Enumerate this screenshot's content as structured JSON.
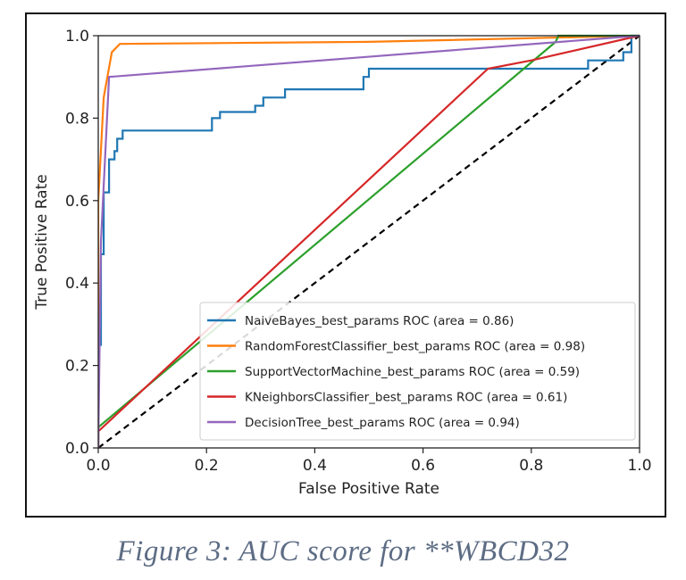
{
  "chart_data": {
    "type": "line",
    "title": "",
    "xlabel": "False Positive Rate",
    "ylabel": "True Positive Rate",
    "xlim": [
      0.0,
      1.0
    ],
    "ylim": [
      0.0,
      1.0
    ],
    "xticks": [
      "0.0",
      "0.2",
      "0.4",
      "0.6",
      "0.8",
      "1.0"
    ],
    "yticks": [
      "0.0",
      "0.2",
      "0.4",
      "0.6",
      "0.8",
      "1.0"
    ],
    "grid": false,
    "legend_position": "lower-right",
    "series": [
      {
        "name": "NaiveBayes_best_params ROC (area = 0.86)",
        "color": "#1f77b4",
        "x": [
          0.0,
          0.0,
          0.005,
          0.005,
          0.01,
          0.01,
          0.02,
          0.02,
          0.03,
          0.03,
          0.035,
          0.035,
          0.045,
          0.045,
          0.055,
          0.055,
          0.21,
          0.21,
          0.225,
          0.225,
          0.29,
          0.29,
          0.305,
          0.305,
          0.345,
          0.345,
          0.49,
          0.49,
          0.5,
          0.5,
          0.905,
          0.905,
          0.97,
          0.97,
          0.985,
          0.985,
          1.0
        ],
        "y": [
          0.0,
          0.25,
          0.25,
          0.47,
          0.47,
          0.62,
          0.62,
          0.7,
          0.7,
          0.72,
          0.72,
          0.75,
          0.75,
          0.77,
          0.77,
          0.77,
          0.77,
          0.8,
          0.8,
          0.815,
          0.815,
          0.83,
          0.83,
          0.85,
          0.85,
          0.87,
          0.87,
          0.9,
          0.9,
          0.92,
          0.92,
          0.94,
          0.94,
          0.96,
          0.96,
          1.0,
          1.0
        ]
      },
      {
        "name": "RandomForestClassifier_best_params ROC (area = 0.98)",
        "color": "#ff7f0e",
        "x": [
          0.0,
          0.0,
          0.01,
          0.025,
          0.04,
          0.5,
          1.0
        ],
        "y": [
          0.0,
          0.6,
          0.85,
          0.96,
          0.98,
          0.985,
          1.0
        ]
      },
      {
        "name": "SupportVectorMachine_best_params ROC (area = 0.59)",
        "color": "#2ca02c",
        "x": [
          0.0,
          0.0,
          0.845,
          0.85,
          1.0
        ],
        "y": [
          0.0,
          0.05,
          0.985,
          1.0,
          1.0
        ]
      },
      {
        "name": "KNeighborsClassifier_best_params ROC (area = 0.61)",
        "color": "#d62728",
        "x": [
          0.0,
          0.0,
          0.72,
          0.8,
          1.0
        ],
        "y": [
          0.0,
          0.04,
          0.92,
          0.94,
          1.0
        ]
      },
      {
        "name": "DecisionTree_best_params ROC (area = 0.94)",
        "color": "#9467bd",
        "x": [
          0.0,
          0.005,
          0.02,
          1.0
        ],
        "y": [
          0.0,
          0.5,
          0.9,
          1.0
        ]
      }
    ],
    "reference_line": {
      "x": [
        0.0,
        1.0
      ],
      "y": [
        0.0,
        1.0
      ],
      "color": "#000000",
      "style": "dashed"
    }
  },
  "caption": "Figure 3: AUC score for **WBCD32"
}
